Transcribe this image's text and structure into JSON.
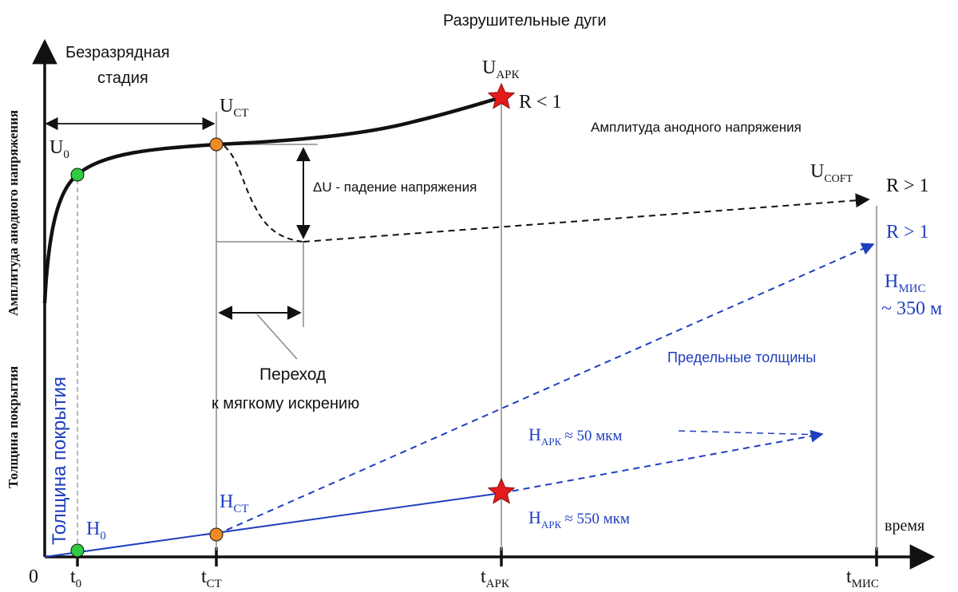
{
  "colors": {
    "black": "#111111",
    "blue": "#1f3fbf",
    "gray": "#8a8a8a",
    "green_marker": "#2ecc40",
    "orange_marker": "#f08a24",
    "red_star": "#e31b1b"
  },
  "title": "Разрушительные дуги",
  "axes": {
    "y_label_top": "Амплитуда анодного напряжения",
    "y_label_bottom": "Толщина покрытия",
    "y_label_blue": "Толщина покрытия",
    "x_label": "время",
    "origin": "0"
  },
  "x_ticks": {
    "t0": {
      "main": "t",
      "sub": "0"
    },
    "tst": {
      "main": "t",
      "sub": "СТ"
    },
    "tark": {
      "main": "t",
      "sub": "АРК"
    },
    "tmis": {
      "main": "t",
      "sub": "МИС"
    }
  },
  "labels": {
    "stage_line1": "Безразрядная",
    "stage_line2": "стадия",
    "u0": {
      "main": "U",
      "sub": "0"
    },
    "ust": {
      "main": "U",
      "sub": "СТ"
    },
    "uark": {
      "main": "U",
      "sub": "АРК"
    },
    "r_lt_1": "R < 1",
    "amp_title": "Амплитуда анодного напряжения",
    "usoft": {
      "main": "U",
      "sub": "СОFT"
    },
    "r_gt_1_black": "R > 1",
    "r_gt_1_blue": "R > 1",
    "delta_u": "ΔU - падение напряжения",
    "transition_line1": "Переход",
    "transition_line2": "к мягкому искрению",
    "hmis": {
      "main": "H",
      "sub": "МИС"
    },
    "hmis_value": "~ 350 м",
    "limit_thickness": "Предельные толщины",
    "h0": {
      "main": "H",
      "sub": "0"
    },
    "hst": {
      "main": "H",
      "sub": "СТ"
    },
    "hark_50": {
      "main": "H",
      "sub": "АРК",
      "rest": "≈ 50 мкм"
    },
    "hark_550": {
      "main": "H",
      "sub": "АРК",
      "rest": "≈ 550 мкм"
    }
  },
  "icons": {
    "stage_arrow": "double-arrow-icon",
    "markers": [
      "circle-marker-icon",
      "star-marker-icon"
    ]
  }
}
